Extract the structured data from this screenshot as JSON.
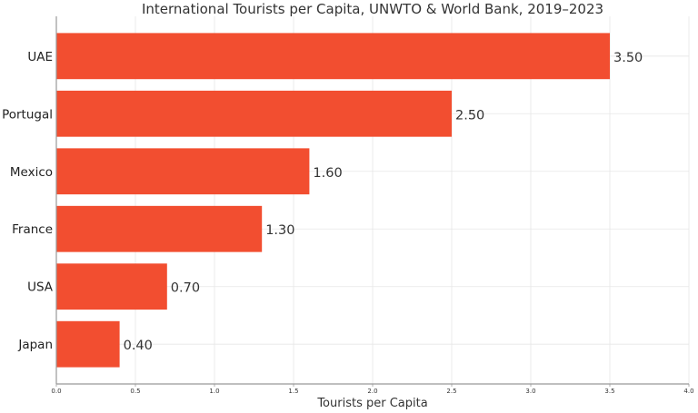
{
  "chart_data": {
    "type": "bar",
    "orientation": "horizontal",
    "title": "International Tourists per Capita, UNWTO & World Bank, 2019–2023",
    "xlabel": "Tourists per Capita",
    "ylabel": "",
    "categories": [
      "UAE",
      "Portugal",
      "Mexico",
      "France",
      "USA",
      "Japan"
    ],
    "values": [
      3.5,
      2.5,
      1.6,
      1.3,
      0.7,
      0.4
    ],
    "data_labels": [
      "3.50",
      "2.50",
      "1.60",
      "1.30",
      "0.70",
      "0.40"
    ],
    "xlim": [
      0,
      4.0
    ],
    "xticks": [
      0,
      0.5,
      1.0,
      1.5,
      2.0,
      2.5,
      3.0,
      3.5,
      4.0
    ],
    "xtick_labels": [
      "0.0",
      "0.5",
      "1.0",
      "1.5",
      "2.0",
      "2.5",
      "3.0",
      "3.5",
      "4.0"
    ],
    "grid": true,
    "bar_color": "#F24E30"
  }
}
